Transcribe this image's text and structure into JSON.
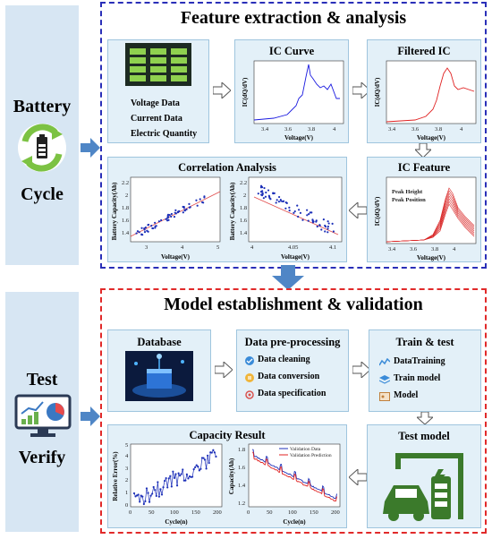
{
  "side": {
    "top_label_1": "Battery",
    "top_label_2": "Cycle",
    "bottom_label_1": "Test",
    "bottom_label_2": "Verify"
  },
  "colors": {
    "feature_frame": "#2a2fb8",
    "model_frame": "#e12a2a",
    "side_panel": "#d7e6f3",
    "card_bg": "#e3f0f8",
    "arrow": "#4f86c6"
  },
  "feature": {
    "title": "Feature extraction & analysis",
    "data_items": [
      "Voltage Data",
      "Current Data",
      "Electric Quantity"
    ],
    "ic_curve": {
      "title": "IC Curve",
      "xlabel": "Voltage(V)",
      "ylabel": "IC(dQ/dV)",
      "xticks": [
        "3.4",
        "3.6",
        "3.8",
        "4"
      ]
    },
    "filtered_ic": {
      "title": "Filtered IC",
      "xlabel": "Voltage(V)",
      "ylabel": "IC(dQ/dV)",
      "xticks": [
        "3.4",
        "3.6",
        "3.8",
        "4"
      ]
    },
    "ic_feature": {
      "title": "IC Feature",
      "xlabel": "Voltage(V)",
      "ylabel": "IC(dQ/dV)",
      "xticks": [
        "3.4",
        "3.6",
        "3.8",
        "4"
      ],
      "legend": [
        "Peak Height",
        "Peak Position"
      ]
    },
    "correlation": {
      "title": "Correlation Analysis",
      "left": {
        "xlabel": "Voltage(V)",
        "ylabel": "Battery Capacity(Ah)",
        "xticks": [
          "3",
          "4",
          "5"
        ],
        "yticks": [
          "1.4",
          "1.6",
          "1.8",
          "2",
          "2.2"
        ]
      },
      "right": {
        "xlabel": "Voltage(V)",
        "ylabel": "Battery Capacity(Ah)",
        "xticks": [
          "4",
          "4.05",
          "4.1"
        ],
        "yticks": [
          "1.4",
          "1.6",
          "1.8",
          "2",
          "2.2"
        ]
      }
    }
  },
  "model": {
    "title": "Model establishment & validation",
    "database": {
      "title": "Database"
    },
    "preprocessing": {
      "title": "Data pre-processing",
      "items": [
        "Data cleaning",
        "Data conversion",
        "Data specification"
      ]
    },
    "train": {
      "title": "Train & test",
      "items": [
        "DataTraining",
        "Train model",
        "Model"
      ]
    },
    "test_model": {
      "title": "Test model"
    },
    "capacity": {
      "title": "Capacity Result",
      "left": {
        "xlabel": "Cycle(n)",
        "ylabel": "Relative Error(%)",
        "xticks": [
          "0",
          "50",
          "100",
          "150",
          "200"
        ],
        "yticks": [
          "0",
          "1",
          "2",
          "3",
          "4",
          "5"
        ]
      },
      "right": {
        "xlabel": "Cycle(n)",
        "ylabel": "Capacity(Ah)",
        "xticks": [
          "0",
          "50",
          "100",
          "150",
          "200"
        ],
        "yticks": [
          "1.2",
          "1.4",
          "1.6",
          "1.8"
        ],
        "legend": [
          "Validation Data",
          "Validation Prediction"
        ]
      }
    }
  }
}
